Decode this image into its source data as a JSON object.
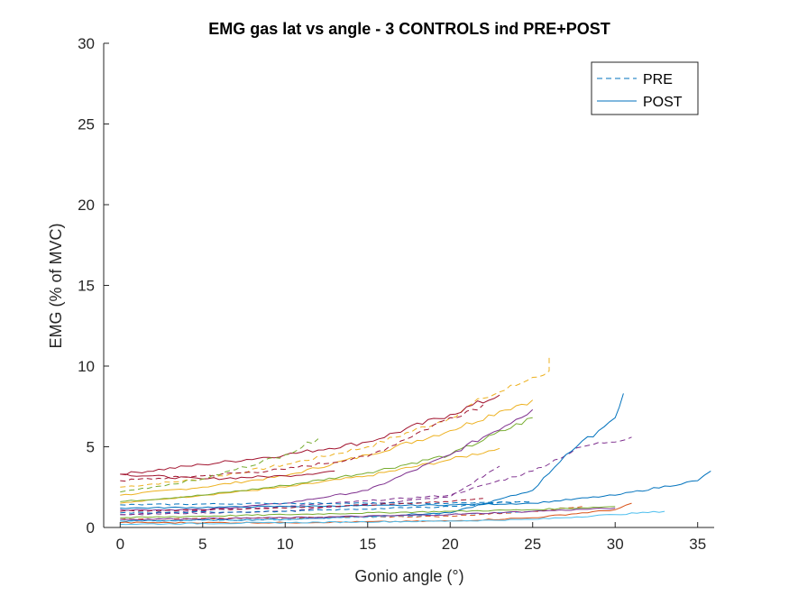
{
  "chart_data": {
    "type": "line",
    "title": "EMG gas lat vs angle - 3 CONTROLS ind PRE+POST",
    "xlabel": "Gonio angle (°)",
    "ylabel": "EMG (% of MVC)",
    "xlim": [
      -1,
      36
    ],
    "ylim": [
      0,
      30
    ],
    "xticks": [
      0,
      5,
      10,
      15,
      20,
      25,
      30,
      35
    ],
    "yticks": [
      0,
      5,
      10,
      15,
      20,
      25,
      30
    ],
    "grid": false,
    "legend": {
      "placement": "top-right",
      "entries": [
        {
          "label": "PRE",
          "style": "dashed",
          "color": "#0072BD"
        },
        {
          "label": "POST",
          "style": "solid",
          "color": "#0072BD"
        }
      ]
    },
    "series": [
      {
        "color": "#EDB120",
        "style": "dashed",
        "x": [
          0,
          5,
          10,
          15,
          20,
          22,
          24,
          25,
          26,
          26
        ],
        "y": [
          2.5,
          3.0,
          3.9,
          5.0,
          6.8,
          8.0,
          8.8,
          9.3,
          9.7,
          10.7
        ]
      },
      {
        "color": "#EDB120",
        "style": "solid",
        "x": [
          0,
          5,
          10,
          15,
          20,
          23,
          25
        ],
        "y": [
          2.0,
          2.5,
          3.2,
          4.5,
          6.0,
          7.2,
          7.9
        ]
      },
      {
        "color": "#EDB120",
        "style": "solid",
        "x": [
          0,
          5,
          10,
          15,
          20,
          23
        ],
        "y": [
          1.5,
          2.0,
          2.5,
          3.2,
          4.2,
          4.9
        ]
      },
      {
        "color": "#A2142F",
        "style": "solid",
        "x": [
          0,
          5,
          10,
          15,
          20,
          23
        ],
        "y": [
          3.3,
          3.9,
          4.5,
          5.3,
          7.0,
          8.2
        ]
      },
      {
        "color": "#A2142F",
        "style": "dashed",
        "x": [
          0,
          5,
          10,
          15,
          20,
          22
        ],
        "y": [
          2.9,
          3.2,
          3.6,
          4.4,
          6.8,
          7.6
        ]
      },
      {
        "color": "#A2142F",
        "style": "solid",
        "x": [
          0,
          5,
          10,
          13
        ],
        "y": [
          3.3,
          3.0,
          3.2,
          3.5
        ]
      },
      {
        "color": "#77AC30",
        "style": "solid",
        "x": [
          0,
          5,
          10,
          15,
          20,
          25
        ],
        "y": [
          1.6,
          2.0,
          2.6,
          3.4,
          4.5,
          6.8
        ]
      },
      {
        "color": "#77AC30",
        "style": "dashed",
        "x": [
          0,
          5,
          10,
          12
        ],
        "y": [
          2.2,
          3.0,
          4.5,
          5.5
        ]
      },
      {
        "color": "#7E2F8E",
        "style": "solid",
        "x": [
          0,
          5,
          10,
          15,
          20,
          24,
          25
        ],
        "y": [
          1.1,
          1.1,
          1.5,
          2.3,
          4.5,
          6.7,
          7.3
        ]
      },
      {
        "color": "#7E2F8E",
        "style": "dashed",
        "x": [
          0,
          10,
          20,
          25,
          28,
          31
        ],
        "y": [
          0.8,
          1.3,
          2.0,
          3.5,
          5.0,
          5.6
        ]
      },
      {
        "color": "#7E2F8E",
        "style": "dashed",
        "x": [
          0,
          10,
          20,
          23
        ],
        "y": [
          0.8,
          1.0,
          1.9,
          3.8
        ]
      },
      {
        "color": "#0072BD",
        "style": "solid",
        "x": [
          0,
          10,
          20,
          25,
          27,
          29,
          30,
          30.5
        ],
        "y": [
          0.4,
          0.5,
          0.9,
          2.3,
          4.5,
          6.0,
          6.8,
          8.3
        ]
      },
      {
        "color": "#0072BD",
        "style": "solid",
        "x": [
          0,
          10,
          20,
          25,
          30,
          35,
          35.8
        ],
        "y": [
          1.2,
          1.3,
          1.4,
          1.5,
          2.0,
          2.9,
          3.5
        ]
      },
      {
        "color": "#0072BD",
        "style": "dashed",
        "x": [
          0,
          10,
          20,
          25
        ],
        "y": [
          1.4,
          1.5,
          1.5,
          1.6
        ]
      },
      {
        "color": "#D95319",
        "style": "solid",
        "x": [
          0,
          10,
          20,
          25,
          30,
          31
        ],
        "y": [
          0.3,
          0.3,
          0.4,
          0.6,
          1.1,
          1.5
        ]
      },
      {
        "color": "#D95319",
        "style": "dashed",
        "x": [
          0,
          10,
          20,
          25,
          28
        ],
        "y": [
          0.5,
          0.6,
          0.7,
          1.0,
          1.3
        ]
      },
      {
        "color": "#4DBEEE",
        "style": "solid",
        "x": [
          0,
          10,
          20,
          25,
          30,
          33
        ],
        "y": [
          0.2,
          0.3,
          0.4,
          0.5,
          0.8,
          1.0
        ]
      },
      {
        "color": "#4DBEEE",
        "style": "dashed",
        "x": [
          0,
          10,
          20,
          25
        ],
        "y": [
          0.4,
          0.5,
          0.8,
          1.0
        ]
      },
      {
        "color": "#77AC30",
        "style": "solid",
        "x": [
          0,
          10,
          20,
          25,
          30
        ],
        "y": [
          0.6,
          0.8,
          1.0,
          1.1,
          1.3
        ]
      },
      {
        "color": "#7E2F8E",
        "style": "solid",
        "x": [
          0,
          10,
          20,
          25,
          30
        ],
        "y": [
          0.5,
          0.6,
          0.8,
          1.0,
          1.2
        ]
      },
      {
        "color": "#A2142F",
        "style": "dashed",
        "x": [
          0,
          10,
          20,
          22
        ],
        "y": [
          1.0,
          1.2,
          1.6,
          1.8
        ]
      },
      {
        "color": "#0072BD",
        "style": "dashed",
        "x": [
          0,
          10,
          20,
          24
        ],
        "y": [
          0.9,
          1.0,
          1.3,
          1.6
        ]
      }
    ]
  }
}
